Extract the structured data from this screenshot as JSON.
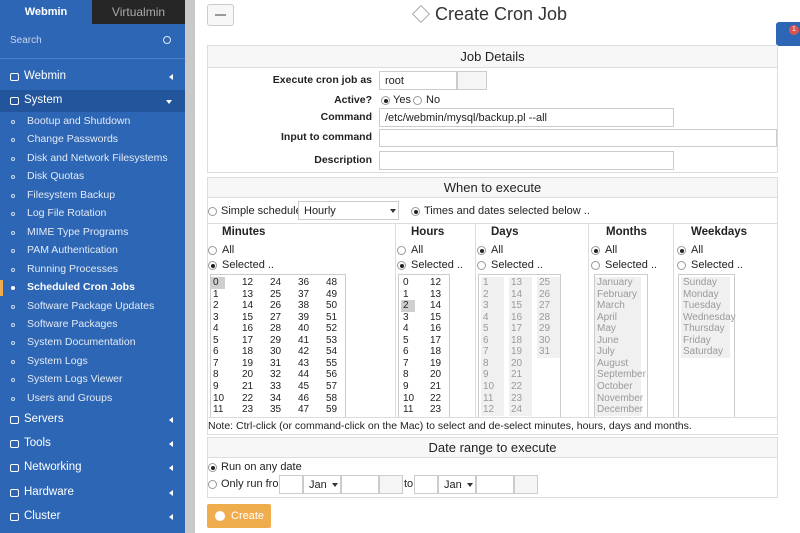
{
  "sidebar": {
    "tabs": [
      "Webmin",
      "Virtualmin"
    ],
    "search": "Search",
    "top_menu": [
      "Webmin",
      "System"
    ],
    "system_items": [
      "Bootup and Shutdown",
      "Change Passwords",
      "Disk and Network Filesystems",
      "Disk Quotas",
      "Filesystem Backup",
      "Log File Rotation",
      "MIME Type Programs",
      "PAM Authentication",
      "Running Processes",
      "Scheduled Cron Jobs",
      "Software Package Updates",
      "Software Packages",
      "System Documentation",
      "System Logs",
      "System Logs Viewer",
      "Users and Groups"
    ],
    "bottom_menu": [
      "Servers",
      "Tools",
      "Networking",
      "Hardware",
      "Cluster"
    ]
  },
  "header": {
    "title": "Create Cron Job",
    "notifications": 1
  },
  "job_details": {
    "title": "Job Details",
    "labels": [
      "Execute cron job as",
      "Active?",
      "Command",
      "Input to command",
      "Description"
    ],
    "user": "root",
    "active_options": [
      "Yes",
      "No"
    ],
    "command": "/etc/webmin/mysql/backup.pl --all"
  },
  "when": {
    "title": "When to execute",
    "simple": "Simple schedule ..",
    "simple_value": "Hourly",
    "selected_mode": "Times and dates selected below ..",
    "columns": [
      {
        "header": "Minutes",
        "all": "All",
        "selected": "Selected ..",
        "items": [
          0,
          1,
          2,
          3,
          4,
          5,
          6,
          7,
          8,
          9,
          10,
          11,
          12,
          13,
          14,
          15,
          16,
          17,
          18,
          19,
          20,
          21,
          22,
          23,
          24,
          25,
          26,
          27,
          28,
          29,
          30,
          31,
          32,
          33,
          34,
          35,
          36,
          37,
          38,
          39,
          40,
          41,
          42,
          43,
          44,
          45,
          46,
          47,
          48,
          49,
          50,
          51,
          52,
          53,
          54,
          55,
          56,
          57,
          58,
          59
        ]
      },
      {
        "header": "Hours",
        "all": "All",
        "selected": "Selected ..",
        "items": [
          0,
          1,
          2,
          3,
          4,
          5,
          6,
          7,
          8,
          9,
          10,
          11,
          12,
          13,
          14,
          15,
          16,
          17,
          18,
          19,
          20,
          21,
          22,
          23
        ]
      },
      {
        "header": "Days",
        "all": "All",
        "selected": "Selected ..",
        "items": [
          1,
          2,
          3,
          4,
          5,
          6,
          7,
          8,
          9,
          10,
          11,
          12,
          13,
          14,
          15,
          16,
          17,
          18,
          19,
          20,
          21,
          22,
          23,
          24,
          25,
          26,
          27,
          28,
          29,
          30,
          31
        ]
      },
      {
        "header": "Months",
        "all": "All",
        "selected": "Selected ..",
        "items": [
          "January",
          "February",
          "March",
          "April",
          "May",
          "June",
          "July",
          "August",
          "September",
          "October",
          "November",
          "December"
        ]
      },
      {
        "header": "Weekdays",
        "all": "All",
        "selected": "Selected ..",
        "items": [
          "Sunday",
          "Monday",
          "Tuesday",
          "Wednesday",
          "Thursday",
          "Friday",
          "Saturday"
        ]
      }
    ],
    "note": "Note: Ctrl-click (or command-click on the Mac) to select and de-select minutes, hours, days and months."
  },
  "date_range": {
    "title": "Date range to execute",
    "any": "Run on any date",
    "only": "Only run from",
    "from_month": "Jan",
    "to": "to",
    "to_month": "Jan"
  },
  "button": "Create"
}
